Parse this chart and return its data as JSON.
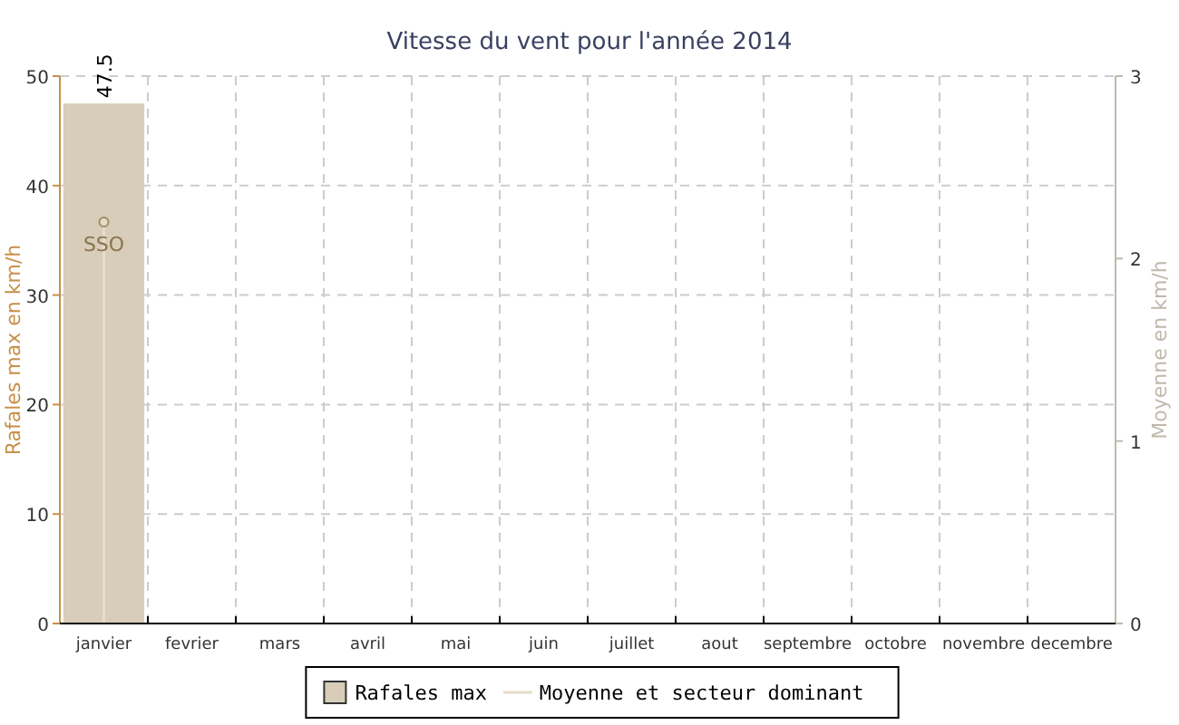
{
  "chart_data": {
    "type": "bar",
    "title": "Vitesse du vent pour l'année 2014",
    "ylabel": "Rafales max en km/h",
    "y2label": "Moyenne en km/h",
    "categories": [
      "janvier",
      "fevrier",
      "mars",
      "avril",
      "mai",
      "juin",
      "juillet",
      "aout",
      "septembre",
      "octobre",
      "novembre",
      "decembre"
    ],
    "series": [
      {
        "name": "Rafales max",
        "color": "#d8cdb8",
        "values": [
          47.5,
          null,
          null,
          null,
          null,
          null,
          null,
          null,
          null,
          null,
          null,
          null
        ],
        "value_labels": [
          "47.5",
          null,
          null,
          null,
          null,
          null,
          null,
          null,
          null,
          null,
          null,
          null
        ]
      },
      {
        "name": "Moyenne et secteur dominant",
        "type": "line",
        "axis": "y2",
        "color": "#e6dcc8",
        "values": [
          2.2,
          null,
          null,
          null,
          null,
          null,
          null,
          null,
          null,
          null,
          null,
          null
        ],
        "value_labels": [
          "SSO",
          null,
          null,
          null,
          null,
          null,
          null,
          null,
          null,
          null,
          null,
          null
        ]
      }
    ],
    "ylim": [
      0,
      50
    ],
    "yticks": [
      0,
      10,
      20,
      30,
      40,
      50
    ],
    "y2lim": [
      0,
      3
    ],
    "y2ticks": [
      0,
      1,
      2,
      3
    ],
    "grid": true,
    "legend": "bottom",
    "marker": "circle"
  }
}
